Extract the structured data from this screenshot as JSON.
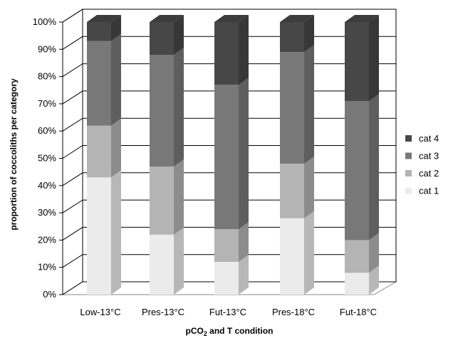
{
  "chart_data": {
    "type": "bar",
    "stacked": true,
    "percent_stacked": true,
    "three_d": true,
    "categories": [
      "Low-13°C",
      "Pres-13°C",
      "Fut-13°C",
      "Pres-18°C",
      "Fut-18°C"
    ],
    "series": [
      {
        "name": "cat 1",
        "values": [
          43,
          22,
          12,
          28,
          8
        ],
        "color": "#ebebeb"
      },
      {
        "name": "cat 2",
        "values": [
          19,
          25,
          12,
          20,
          12
        ],
        "color": "#b4b4b4"
      },
      {
        "name": "cat 3",
        "values": [
          31,
          41,
          53,
          41,
          51
        ],
        "color": "#787878"
      },
      {
        "name": "cat 4",
        "values": [
          7,
          12,
          23,
          11,
          29
        ],
        "color": "#474747"
      }
    ],
    "legend_order": [
      "cat 4",
      "cat 3",
      "cat 2",
      "cat 1"
    ],
    "legend_position": "right",
    "ylabel": "proportion of coccoliths per category",
    "xlabel_main": "pCO",
    "xlabel_sub": "2",
    "xlabel_rest": " and T condition",
    "ylim": [
      0,
      100
    ],
    "yticks": [
      "0%",
      "10%",
      "20%",
      "30%",
      "40%",
      "50%",
      "60%",
      "70%",
      "80%",
      "90%",
      "100%"
    ],
    "grid": true
  }
}
